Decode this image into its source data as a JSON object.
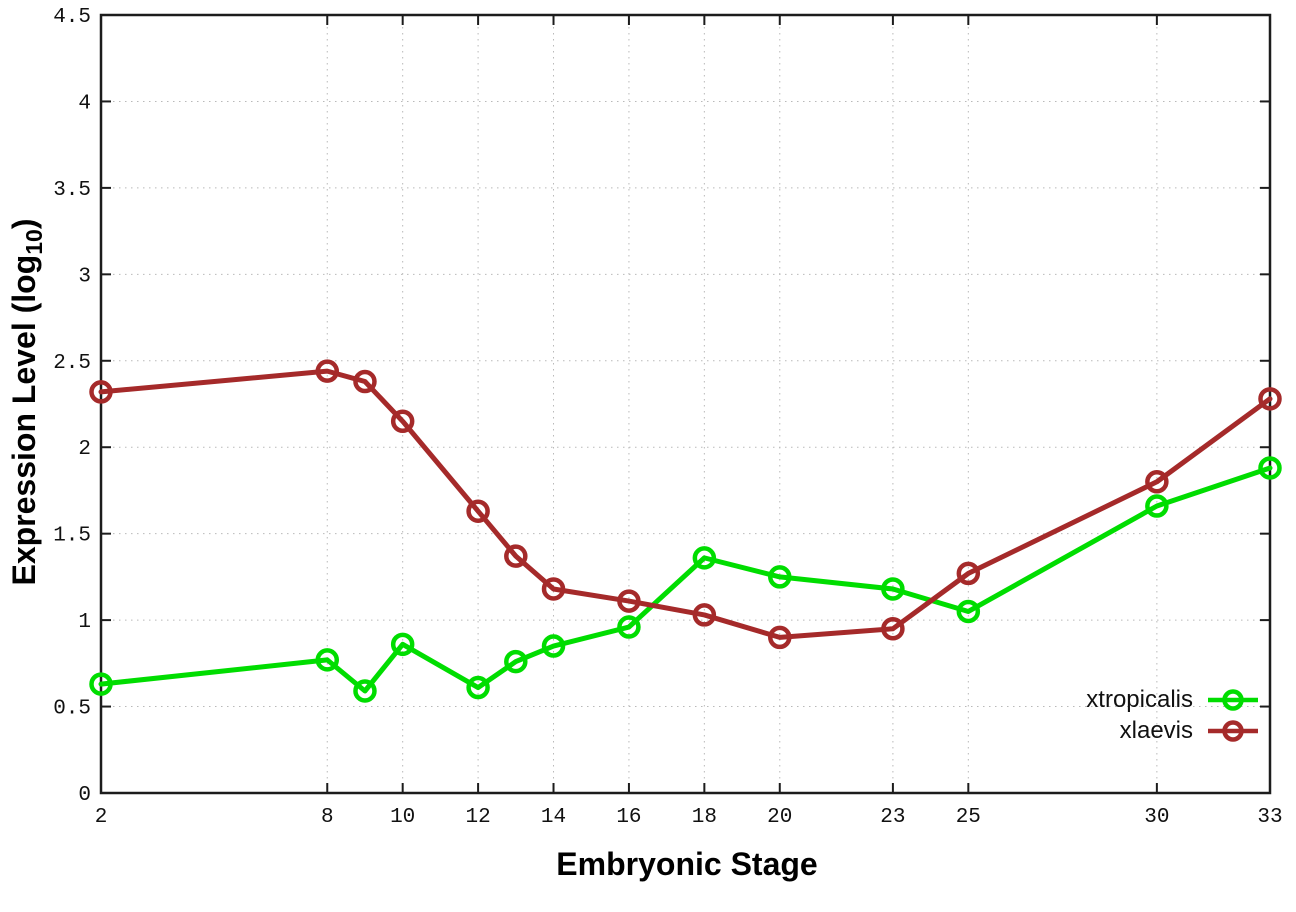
{
  "chart_data": {
    "type": "line",
    "title": "",
    "xlabel": "Embryonic Stage",
    "ylabel": "Expression Level (log10)",
    "ylabel_main": "Expression Level (log",
    "ylabel_sub": "10",
    "ylabel_suffix": ")",
    "xlim": [
      2,
      33
    ],
    "ylim": [
      0,
      4.5
    ],
    "x_ticks": [
      2,
      8,
      10,
      12,
      14,
      16,
      18,
      20,
      23,
      25,
      30,
      33
    ],
    "y_ticks": [
      0,
      0.5,
      1,
      1.5,
      2,
      2.5,
      3,
      3.5,
      4,
      4.5
    ],
    "grid": true,
    "legend_position": "inside bottom-right",
    "x": [
      2,
      8,
      9,
      10,
      12,
      13,
      14,
      16,
      18,
      20,
      23,
      25,
      30,
      33
    ],
    "series": [
      {
        "name": "xtropicalis",
        "color": "#00dd00",
        "values": [
          0.63,
          0.77,
          0.59,
          0.86,
          0.61,
          0.76,
          0.85,
          0.96,
          1.36,
          1.25,
          1.18,
          1.05,
          1.66,
          1.88
        ]
      },
      {
        "name": "xlaevis",
        "color": "#a52a2a",
        "values": [
          2.32,
          2.44,
          2.38,
          2.15,
          1.63,
          1.37,
          1.18,
          1.11,
          1.03,
          0.9,
          0.95,
          1.27,
          1.8,
          2.28
        ]
      }
    ]
  },
  "axis_style": {
    "border_color": "#1c1c1c",
    "grid_color": "#b9b9b9",
    "tick_label_color": "#111111"
  }
}
